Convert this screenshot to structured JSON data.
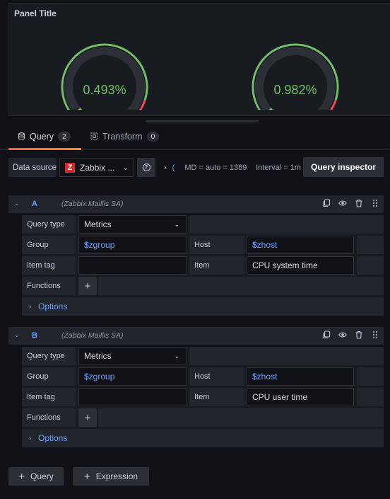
{
  "panel": {
    "title": "Panel Title",
    "gauges": [
      {
        "value_label": "0.493%",
        "value_fraction": 0.9,
        "color": "#73bf69",
        "threshold_color": "#f2495c"
      },
      {
        "value_label": "0.982%",
        "value_fraction": 0.9,
        "color": "#73bf69",
        "threshold_color": "#f2495c"
      }
    ]
  },
  "tabs": {
    "query_label": "Query",
    "query_count": "2",
    "transform_label": "Transform",
    "transform_count": "0"
  },
  "datasource": {
    "label": "Data source",
    "name": "Zabbix ...",
    "logo_letter": "Z",
    "md_label": "MD = auto = 1389",
    "interval_label": "Interval = 1m",
    "inspector_label": "Query inspector"
  },
  "queries": [
    {
      "letter": "A",
      "datasource": "(Zabbix Maillis SA)",
      "query_type_label": "Query type",
      "query_type": "Metrics",
      "group_label": "Group",
      "group": "$zgroup",
      "host_label": "Host",
      "host": "$zhost",
      "item_tag_label": "Item tag",
      "item_tag": "",
      "item_label": "Item",
      "item": "CPU system time",
      "functions_label": "Functions",
      "options_label": "Options"
    },
    {
      "letter": "B",
      "datasource": "(Zabbix Maillis SA)",
      "query_type_label": "Query type",
      "query_type": "Metrics",
      "group_label": "Group",
      "group": "$zgroup",
      "host_label": "Host",
      "host": "$zhost",
      "item_tag_label": "Item tag",
      "item_tag": "",
      "item_label": "Item",
      "item": "CPU user time",
      "functions_label": "Functions",
      "options_label": "Options"
    }
  ],
  "footer": {
    "add_query_label": "Query",
    "add_expression_label": "Expression"
  }
}
